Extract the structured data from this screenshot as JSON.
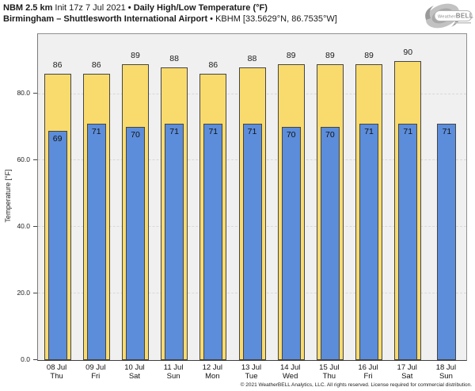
{
  "header": {
    "model": "NBM 2.5 km",
    "init": "Init 17z 7 Jul 2021",
    "sep": "•",
    "product": "Daily High/Low Temperature (°F)",
    "location": "Birmingham – Shuttlesworth International Airport",
    "station": "KBHM [33.5629°N, 86.7535°W]"
  },
  "logo": {
    "brand_prefix": "Weather",
    "brand_suffix": "BELL"
  },
  "chart_data": {
    "type": "bar",
    "title": "Daily High/Low Temperature (°F)",
    "xlabel": "",
    "ylabel": "Temperature [°F]",
    "ylim": [
      0,
      98
    ],
    "yticks": [
      0,
      20,
      40,
      60,
      80
    ],
    "ytick_labels": [
      "0.0",
      "20.0",
      "40.0",
      "60.0",
      "80.0"
    ],
    "grid": "horizontal-dashed",
    "legend_position": "none",
    "categories": [
      {
        "date": "08 Jul",
        "day": "Thu"
      },
      {
        "date": "09 Jul",
        "day": "Fri"
      },
      {
        "date": "10 Jul",
        "day": "Sat"
      },
      {
        "date": "11 Jul",
        "day": "Sun"
      },
      {
        "date": "12 Jul",
        "day": "Mon"
      },
      {
        "date": "13 Jul",
        "day": "Tue"
      },
      {
        "date": "14 Jul",
        "day": "Wed"
      },
      {
        "date": "15 Jul",
        "day": "Thu"
      },
      {
        "date": "16 Jul",
        "day": "Fri"
      },
      {
        "date": "17 Jul",
        "day": "Sat"
      },
      {
        "date": "18 Jul",
        "day": "Sun"
      }
    ],
    "series": [
      {
        "name": "High",
        "color": "#F9DB6D",
        "values": [
          86,
          86,
          89,
          88,
          86,
          88,
          89,
          89,
          89,
          90,
          null
        ]
      },
      {
        "name": "Low",
        "color": "#5C8DDB",
        "values": [
          69,
          71,
          70,
          71,
          71,
          71,
          70,
          70,
          71,
          71,
          71
        ]
      }
    ]
  },
  "footer": {
    "copyright": "© 2021 WeatherBELL Analytics, LLC. All rights reserved. License required for commercial distribution."
  },
  "colors": {
    "high_bar": "#F9DB6D",
    "low_bar": "#5C8DDB",
    "bar_border": "#454545",
    "plot_bg": "#F0F0F0",
    "grid": "#D9D9D9",
    "plot_border": "#8F8F8F",
    "text": "#1A1A1A"
  }
}
